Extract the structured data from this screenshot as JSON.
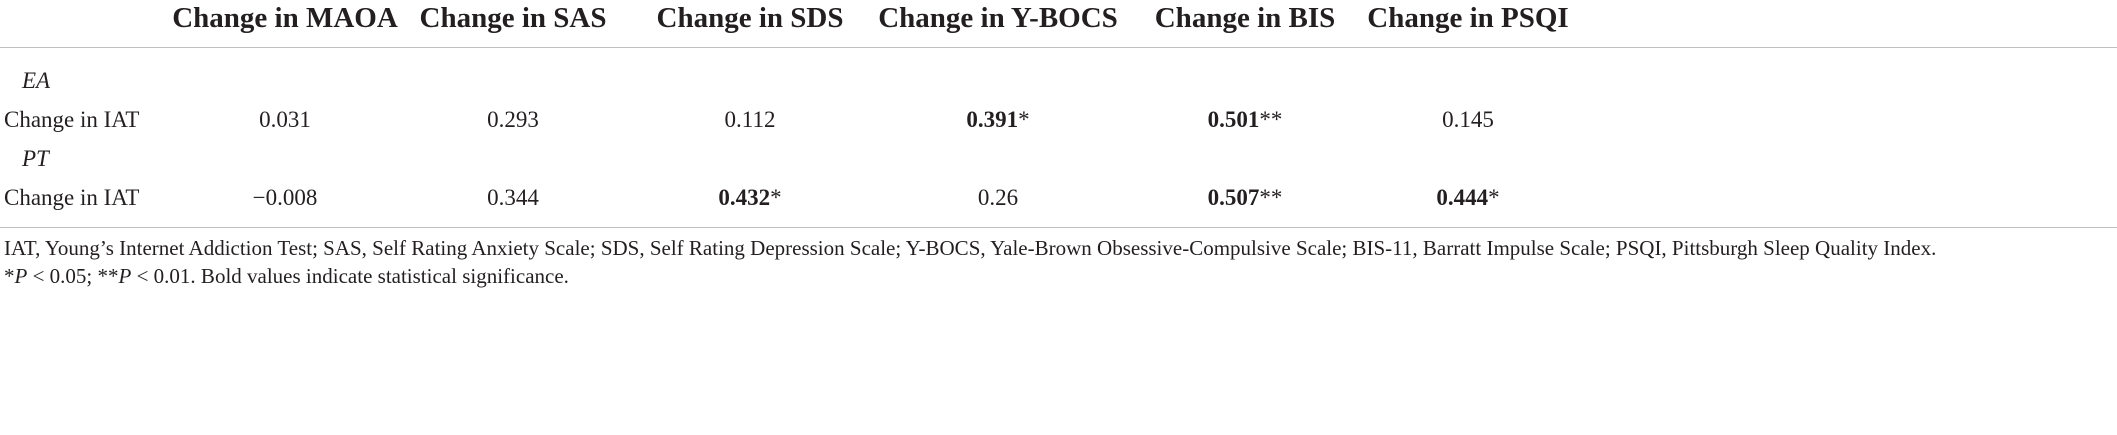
{
  "table": {
    "columns": [
      "Change in MAOA",
      "Change in SAS",
      "Change in SDS",
      "Change in Y-BOCS",
      "Change in BIS",
      "Change in PSQI"
    ],
    "groups": [
      {
        "label": "EA",
        "rows": [
          {
            "label": "Change in IAT",
            "cells": [
              {
                "text": "0.031"
              },
              {
                "text": "0.293"
              },
              {
                "text": "0.112"
              },
              {
                "text": "0.391",
                "mark": "*",
                "bold": true
              },
              {
                "text": "0.501",
                "mark": "**",
                "bold": true
              },
              {
                "text": "0.145"
              }
            ]
          }
        ]
      },
      {
        "label": "PT",
        "rows": [
          {
            "label": "Change in IAT",
            "cells": [
              {
                "text": "−0.008"
              },
              {
                "text": "0.344"
              },
              {
                "text": "0.432",
                "mark": "*",
                "bold": true
              },
              {
                "text": "0.26"
              },
              {
                "text": "0.507",
                "mark": "**",
                "bold": true
              },
              {
                "text": "0.444",
                "mark": "*",
                "bold": true
              }
            ]
          }
        ]
      }
    ]
  },
  "notes": [
    [
      {
        "text": "IAT, Young’s Internet Addiction Test; SAS, Self Rating Anxiety Scale; SDS, Self Rating Depression Scale; Y-BOCS, Yale-Brown Obsessive-Compulsive Scale; BIS-11, Barratt Impulse Scale; PSQI, Pittsburgh Sleep Quality Index."
      }
    ],
    [
      {
        "text": "*"
      },
      {
        "text": "P",
        "italic": true
      },
      {
        "text": " < 0.05; **"
      },
      {
        "text": "P",
        "italic": true
      },
      {
        "text": " < 0.01. Bold values indicate statistical significance."
      }
    ]
  ]
}
